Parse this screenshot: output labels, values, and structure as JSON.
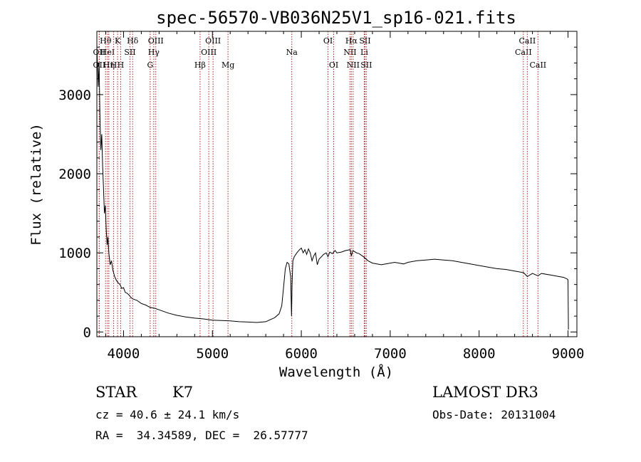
{
  "chart_data": {
    "type": "line",
    "title": "spec-56570-VB036N25V1_sp16-021.fits",
    "xlabel": "Wavelength (Å)",
    "ylabel": "Flux (relative)",
    "xlim": [
      3700,
      9100
    ],
    "ylim": [
      -60,
      3800
    ],
    "x_ticks": [
      4000,
      5000,
      6000,
      7000,
      8000,
      9000
    ],
    "x_tick_labels": [
      "4000",
      "5000",
      "6000",
      "7000",
      "8000",
      "9000"
    ],
    "y_ticks": [
      0,
      1000,
      2000,
      3000
    ],
    "y_tick_labels": [
      "0",
      "1000",
      "2000",
      "3000"
    ],
    "series": [
      {
        "name": "flux",
        "x": [
          3700,
          3715,
          3725,
          3735,
          3745,
          3755,
          3765,
          3775,
          3785,
          3795,
          3805,
          3815,
          3825,
          3835,
          3850,
          3865,
          3880,
          3900,
          3920,
          3940,
          3960,
          3980,
          4000,
          4020,
          4040,
          4060,
          4080,
          4100,
          4150,
          4200,
          4250,
          4300,
          4350,
          4400,
          4500,
          4600,
          4700,
          4800,
          4900,
          5000,
          5100,
          5200,
          5300,
          5400,
          5500,
          5600,
          5700,
          5750,
          5780,
          5800,
          5820,
          5840,
          5860,
          5880,
          5890,
          5896,
          5905,
          5920,
          5950,
          5980,
          6000,
          6020,
          6040,
          6060,
          6080,
          6100,
          6120,
          6140,
          6160,
          6180,
          6200,
          6250,
          6280,
          6300,
          6320,
          6350,
          6380,
          6400,
          6450,
          6500,
          6550,
          6563,
          6580,
          6620,
          6650,
          6700,
          6750,
          6800,
          6850,
          6900,
          6950,
          7000,
          7050,
          7100,
          7150,
          7200,
          7250,
          7300,
          7400,
          7500,
          7600,
          7700,
          7800,
          7900,
          8000,
          8100,
          8200,
          8300,
          8400,
          8500,
          8542,
          8600,
          8662,
          8700,
          8800,
          8900,
          8950,
          8990,
          9000,
          9005
        ],
        "y": [
          3600,
          3100,
          3400,
          2700,
          2300,
          2500,
          2100,
          1800,
          1500,
          1600,
          1300,
          1100,
          1200,
          1000,
          850,
          900,
          780,
          700,
          650,
          620,
          600,
          550,
          560,
          500,
          490,
          470,
          440,
          420,
          400,
          360,
          340,
          310,
          300,
          280,
          240,
          210,
          190,
          175,
          165,
          150,
          145,
          140,
          130,
          125,
          120,
          130,
          180,
          230,
          330,
          560,
          800,
          880,
          860,
          700,
          200,
          600,
          900,
          950,
          1000,
          1040,
          1060,
          1000,
          1040,
          980,
          1050,
          1000,
          900,
          960,
          1000,
          850,
          920,
          980,
          1000,
          950,
          1010,
          990,
          1030,
          1000,
          1010,
          1030,
          1040,
          960,
          1030,
          1000,
          990,
          950,
          900,
          870,
          860,
          850,
          860,
          870,
          880,
          870,
          860,
          880,
          890,
          900,
          910,
          920,
          910,
          900,
          880,
          860,
          840,
          820,
          800,
          790,
          770,
          750,
          700,
          740,
          710,
          740,
          720,
          700,
          690,
          670,
          660,
          30
        ]
      }
    ],
    "line_markers": [
      {
        "wavelength": 3727,
        "label": "OII",
        "row": 2
      },
      {
        "wavelength": 3727,
        "label": "OII",
        "row": 3
      },
      {
        "wavelength": 3798,
        "label": "Hθ",
        "row": 1
      },
      {
        "wavelength": 3820,
        "label": "HeI",
        "row": 2
      },
      {
        "wavelength": 3835,
        "label": "Hη",
        "row": 3
      },
      {
        "wavelength": 3889,
        "label": "H",
        "row": 3
      },
      {
        "wavelength": 3933,
        "label": "K",
        "row": 1
      },
      {
        "wavelength": 3968,
        "label": "H",
        "row": 3
      },
      {
        "wavelength": 4072,
        "label": "SII",
        "row": 2
      },
      {
        "wavelength": 4102,
        "label": "Hδ",
        "row": 1
      },
      {
        "wavelength": 4300,
        "label": "G",
        "row": 3
      },
      {
        "wavelength": 4340,
        "label": "Hγ",
        "row": 2
      },
      {
        "wavelength": 4363,
        "label": "OIII",
        "row": 1
      },
      {
        "wavelength": 4861,
        "label": "Hβ",
        "row": 3
      },
      {
        "wavelength": 4959,
        "label": "OIII",
        "row": 2
      },
      {
        "wavelength": 5007,
        "label": "OIII",
        "row": 1
      },
      {
        "wavelength": 5175,
        "label": "Mg",
        "row": 3
      },
      {
        "wavelength": 5893,
        "label": "Na",
        "row": 2
      },
      {
        "wavelength": 6300,
        "label": "OI",
        "row": 1
      },
      {
        "wavelength": 6364,
        "label": "OI",
        "row": 3
      },
      {
        "wavelength": 6548,
        "label": "NII",
        "row": 2
      },
      {
        "wavelength": 6563,
        "label": "Hα",
        "row": 1
      },
      {
        "wavelength": 6583,
        "label": "NII",
        "row": 3
      },
      {
        "wavelength": 6708,
        "label": "Li",
        "row": 2
      },
      {
        "wavelength": 6716,
        "label": "SII",
        "row": 1
      },
      {
        "wavelength": 6731,
        "label": "SII",
        "row": 3
      },
      {
        "wavelength": 8498,
        "label": "CaII",
        "row": 2
      },
      {
        "wavelength": 8542,
        "label": "CaII",
        "row": 1
      },
      {
        "wavelength": 8662,
        "label": "CaII",
        "row": 3
      }
    ]
  },
  "info": {
    "object_class": "STAR",
    "subclass": "K7",
    "redshift_text": "cz = 40.6 ± 24.1 km/s",
    "coordinates_text": "RA =  34.34589, DEC =  26.57777",
    "survey": "LAMOST DR3",
    "obs_date_text": "Obs-Date: 20131004"
  }
}
